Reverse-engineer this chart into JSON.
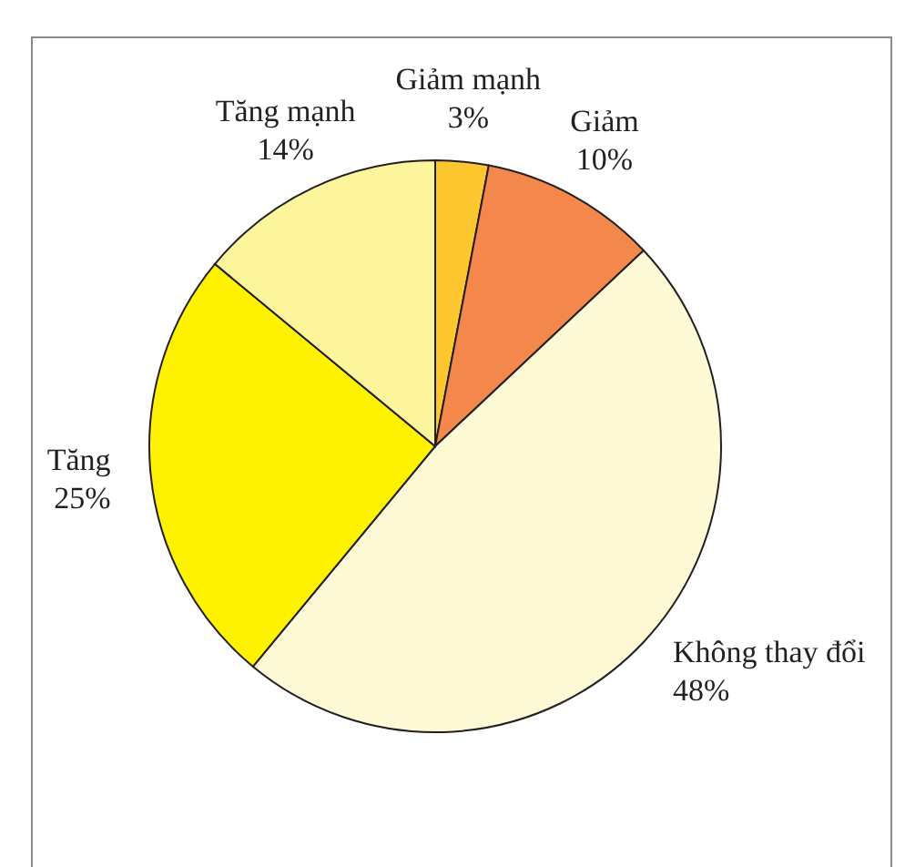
{
  "chart_data": {
    "type": "pie",
    "categories": [
      "Giảm mạnh",
      "Giảm",
      "Không thay đổi",
      "Tăng",
      "Tăng mạnh"
    ],
    "values": [
      3,
      10,
      48,
      25,
      14
    ],
    "value_labels": [
      "3%",
      "10%",
      "48%",
      "25%",
      "14%"
    ],
    "colors": [
      "#fec72f",
      "#f4874b",
      "#fffad6",
      "#fff200",
      "#fdf59b"
    ]
  }
}
